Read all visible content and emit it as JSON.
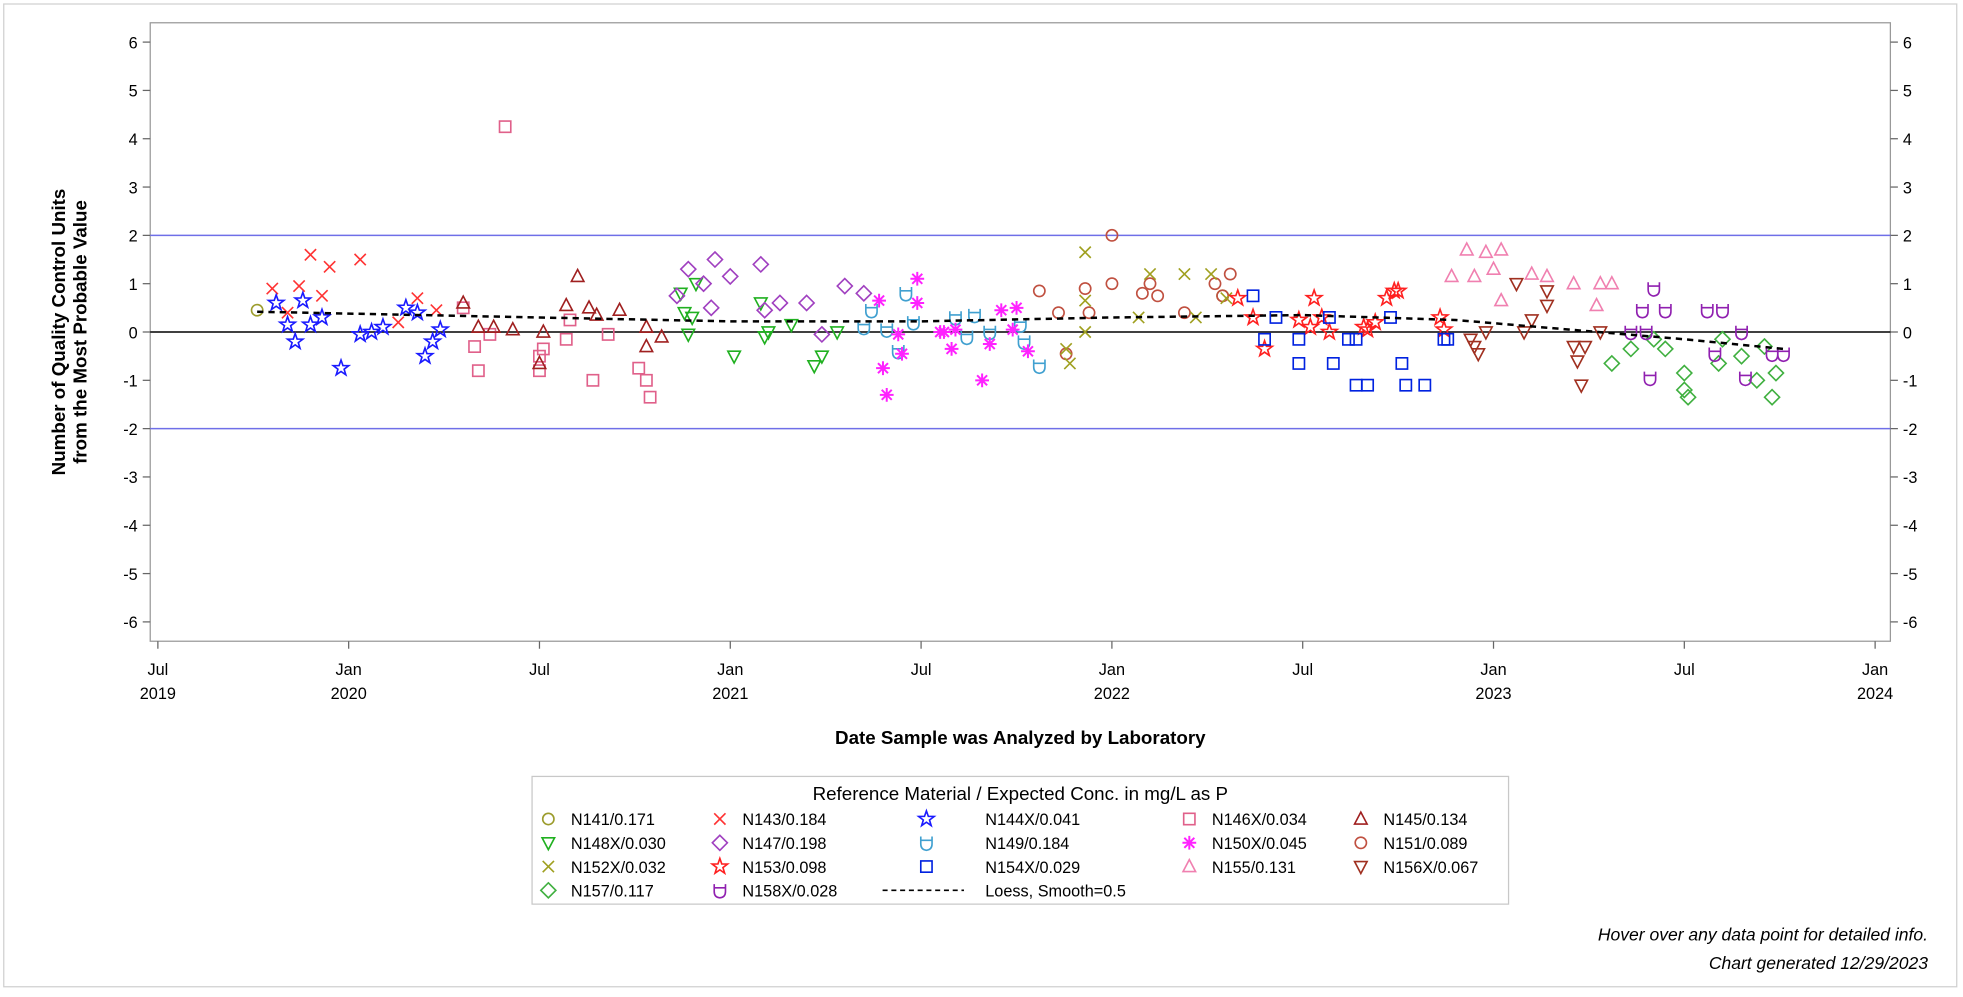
{
  "chart_data": {
    "type": "scatter",
    "ylabel": [
      "Number of Quality Control Units",
      "from the Most Probable Value"
    ],
    "xlabel": "Date Sample was Analyzed by Laboratory",
    "xlim": [
      2019.48,
      2024.04
    ],
    "xticks": [
      {
        "value": 2019.5,
        "label": "Jul 2019"
      },
      {
        "value": 2020.0,
        "label": "Jan 2020"
      },
      {
        "value": 2020.5,
        "label": "Jul"
      },
      {
        "value": 2021.0,
        "label": "Jan 2021"
      },
      {
        "value": 2021.5,
        "label": "Jul"
      },
      {
        "value": 2022.0,
        "label": "Jan 2022"
      },
      {
        "value": 2022.5,
        "label": "Jul"
      },
      {
        "value": 2023.0,
        "label": "Jan 2023"
      },
      {
        "value": 2023.5,
        "label": "Jul"
      },
      {
        "value": 2024.0,
        "label": "Jan 2024"
      }
    ],
    "ylim": [
      -6.4,
      6.4
    ],
    "yticks": [
      -6,
      -5,
      -4,
      -3,
      -2,
      -1,
      0,
      1,
      2,
      3,
      4,
      5,
      6
    ],
    "y2lim": [
      -6.4,
      6.4
    ],
    "y2ticks": [
      -6,
      -5,
      -4,
      -3,
      -2,
      -1,
      0,
      1,
      2,
      3,
      4,
      5,
      6
    ],
    "hlines": [
      {
        "value": 2,
        "color": "#6f6fe8"
      },
      {
        "value": -2,
        "color": "#6f6fe8"
      },
      {
        "value": 0,
        "color": "#000000"
      }
    ],
    "legend_title": "Reference Material / Expected Conc. in mg/L as P",
    "notes": [
      "Hover over any data point for detailed info.",
      "Chart generated 12/29/2023"
    ],
    "series": [
      {
        "name": "N141/0.171",
        "color": "#9c9c2c",
        "marker": "circle",
        "x": [
          2019.76,
          2022.29
        ],
        "values": [
          0.45,
          0.75
        ]
      },
      {
        "name": "N143/0.184",
        "color": "#ff3333",
        "marker": "x",
        "x": [
          2019.8,
          2019.84,
          2019.87,
          2019.9,
          2019.93,
          2019.95,
          2020.03,
          2020.13,
          2020.18,
          2020.23
        ],
        "values": [
          0.9,
          0.4,
          0.95,
          1.6,
          0.75,
          1.35,
          1.5,
          0.2,
          0.7,
          0.45
        ]
      },
      {
        "name": "N144X/0.041",
        "color": "#1a1aff",
        "marker": "star",
        "x": [
          2019.81,
          2019.84,
          2019.86,
          2019.88,
          2019.9,
          2019.93,
          2019.98,
          2020.03,
          2020.06,
          2020.09,
          2020.15,
          2020.18,
          2020.2,
          2020.22,
          2020.24
        ],
        "values": [
          0.6,
          0.15,
          -0.2,
          0.65,
          0.15,
          0.3,
          -0.75,
          -0.05,
          0,
          0.1,
          0.5,
          0.4,
          -0.5,
          -0.2,
          0.05
        ]
      },
      {
        "name": "N146X/0.034",
        "color": "#e0608a",
        "marker": "square",
        "x": [
          2020.3,
          2020.33,
          2020.34,
          2020.37,
          2020.41,
          2020.5,
          2020.5,
          2020.51,
          2020.57,
          2020.58,
          2020.64,
          2020.68,
          2020.76,
          2020.78,
          2020.79
        ],
        "values": [
          0.5,
          -0.3,
          -0.8,
          -0.05,
          4.25,
          -0.5,
          -0.8,
          -0.35,
          -0.15,
          0.25,
          -1,
          -0.05,
          -0.75,
          -1,
          -1.35
        ]
      },
      {
        "name": "N145/0.134",
        "color": "#a02020",
        "marker": "triangle",
        "x": [
          2020.3,
          2020.34,
          2020.38,
          2020.43,
          2020.5,
          2020.51,
          2020.57,
          2020.6,
          2020.63,
          2020.65,
          2020.71,
          2020.78,
          2020.82,
          2020.78
        ],
        "values": [
          0.6,
          0.1,
          0.1,
          0.05,
          -0.65,
          0,
          0.55,
          1.15,
          0.5,
          0.35,
          0.45,
          0.1,
          -0.1,
          -0.3
        ]
      },
      {
        "name": "N148X/0.030",
        "color": "#20b020",
        "marker": "triangle-down",
        "x": [
          2020.87,
          2020.88,
          2020.89,
          2020.9,
          2020.91,
          2021.01,
          2021.08,
          2021.09,
          2021.1,
          2021.16,
          2021.22,
          2021.24,
          2021.28
        ],
        "values": [
          0.8,
          0.4,
          -0.05,
          0.3,
          1,
          -0.5,
          0.6,
          -0.1,
          0,
          0.15,
          -0.7,
          -0.5,
          0
        ]
      },
      {
        "name": "N147/0.198",
        "color": "#a040c0",
        "marker": "diamond",
        "x": [
          2020.86,
          2020.89,
          2020.93,
          2020.95,
          2020.96,
          2021.0,
          2021.08,
          2021.09,
          2021.13,
          2021.2,
          2021.24,
          2021.3,
          2021.35
        ],
        "values": [
          0.75,
          1.3,
          1,
          0.5,
          1.5,
          1.15,
          1.4,
          0.45,
          0.6,
          0.6,
          -0.05,
          0.95,
          0.8
        ]
      },
      {
        "name": "N149/0.184",
        "color": "#40a0d0",
        "marker": "shield",
        "x": [
          2021.35,
          2021.37,
          2021.41,
          2021.44,
          2021.46,
          2021.48,
          2021.59,
          2021.62,
          2021.64,
          2021.68,
          2021.77,
          2021.81,
          2021.76
        ],
        "values": [
          0.1,
          0.45,
          0.05,
          -0.4,
          0.8,
          0.2,
          0.3,
          -0.1,
          0.35,
          0,
          -0.2,
          -0.7,
          0.15
        ]
      },
      {
        "name": "N150X/0.045",
        "color": "#ff22ff",
        "marker": "asterisk",
        "x": [
          2021.39,
          2021.4,
          2021.41,
          2021.44,
          2021.45,
          2021.49,
          2021.49,
          2021.55,
          2021.56,
          2021.58,
          2021.59,
          2021.66,
          2021.68,
          2021.71,
          2021.74,
          2021.75,
          2021.78
        ],
        "values": [
          0.65,
          -0.75,
          -1.3,
          -0.05,
          -0.45,
          0.6,
          1.1,
          0,
          0,
          -0.35,
          0.05,
          -1,
          -0.25,
          0.45,
          0.05,
          0.5,
          -0.4
        ]
      },
      {
        "name": "N151/0.089",
        "color": "#c05040",
        "marker": "circle",
        "x": [
          2021.81,
          2021.86,
          2021.88,
          2021.93,
          2021.94,
          2022.0,
          2022.0,
          2022.08,
          2022.1,
          2022.12,
          2022.19,
          2022.27,
          2022.29,
          2022.31
        ],
        "values": [
          0.85,
          0.4,
          -0.45,
          0.9,
          0.4,
          2,
          1,
          0.8,
          1,
          0.75,
          0.4,
          1,
          0.75,
          1.2
        ]
      },
      {
        "name": "N152X/0.032",
        "color": "#a0a020",
        "marker": "x",
        "x": [
          2021.88,
          2021.89,
          2021.93,
          2021.93,
          2021.93,
          2022.07,
          2022.1,
          2022.19,
          2022.22,
          2022.26,
          2022.3
        ],
        "values": [
          -0.35,
          -0.65,
          1.65,
          0.65,
          0,
          0.3,
          1.2,
          1.2,
          0.3,
          1.2,
          0.7
        ]
      },
      {
        "name": "N153/0.098",
        "color": "#ff2020",
        "marker": "star",
        "x": [
          2022.33,
          2022.37,
          2022.4,
          2022.49,
          2022.52,
          2022.53,
          2022.55,
          2022.57,
          2022.66,
          2022.67,
          2022.69,
          2022.72,
          2022.74,
          2022.75,
          2022.86,
          2022.87
        ],
        "values": [
          0.7,
          0.3,
          -0.35,
          0.25,
          0.1,
          0.7,
          0.3,
          0,
          0.1,
          0.05,
          0.2,
          0.7,
          0.85,
          0.85,
          0.3,
          0.05
        ]
      },
      {
        "name": "N154X/0.029",
        "color": "#0022e0",
        "marker": "square",
        "x": [
          2022.37,
          2022.4,
          2022.43,
          2022.49,
          2022.49,
          2022.57,
          2022.58,
          2022.62,
          2022.64,
          2022.64,
          2022.67,
          2022.73,
          2022.76,
          2022.77,
          2022.82,
          2022.87,
          2022.88
        ],
        "values": [
          0.75,
          -0.15,
          0.3,
          -0.15,
          -0.65,
          0.3,
          -0.65,
          -0.15,
          -0.15,
          -1.1,
          -1.1,
          0.3,
          -0.65,
          -1.1,
          -1.1,
          -0.15,
          -0.15
        ]
      },
      {
        "name": "N155/0.131",
        "color": "#f080b0",
        "marker": "triangle",
        "x": [
          2022.89,
          2022.93,
          2022.95,
          2022.98,
          2023.0,
          2023.02,
          2023.02,
          2023.1,
          2023.14,
          2023.21,
          2023.27,
          2023.28,
          2023.31
        ],
        "values": [
          1.15,
          1.7,
          1.15,
          1.65,
          1.3,
          0.65,
          1.7,
          1.2,
          1.15,
          1,
          0.55,
          1,
          1
        ]
      },
      {
        "name": "N156X/0.067",
        "color": "#a03020",
        "marker": "triangle-down",
        "x": [
          2022.94,
          2022.95,
          2022.96,
          2022.98,
          2023.06,
          2023.08,
          2023.1,
          2023.14,
          2023.14,
          2023.21,
          2023.22,
          2023.23,
          2023.24,
          2023.28
        ],
        "values": [
          -0.15,
          -0.3,
          -0.45,
          0,
          1,
          0,
          0.25,
          0.85,
          0.55,
          -0.3,
          -0.6,
          -1.1,
          -0.3,
          0
        ]
      },
      {
        "name": "N157/0.117",
        "color": "#40b040",
        "marker": "diamond",
        "x": [
          2023.31,
          2023.36,
          2023.42,
          2023.45,
          2023.5,
          2023.5,
          2023.51,
          2023.59,
          2023.6,
          2023.65,
          2023.69,
          2023.71,
          2023.73,
          2023.74
        ],
        "values": [
          -0.65,
          -0.35,
          -0.15,
          -0.35,
          -0.85,
          -1.2,
          -1.35,
          -0.65,
          -0.15,
          -0.5,
          -1,
          -0.3,
          -1.35,
          -0.85
        ]
      },
      {
        "name": "N158X/0.028",
        "color": "#9020b0",
        "marker": "shield",
        "x": [
          2023.36,
          2023.39,
          2023.4,
          2023.41,
          2023.42,
          2023.45,
          2023.56,
          2023.58,
          2023.6,
          2023.65,
          2023.66,
          2023.73,
          2023.76
        ],
        "values": [
          0,
          0.45,
          0,
          -0.95,
          0.9,
          0.45,
          0.45,
          -0.45,
          0.45,
          0,
          -0.95,
          -0.45,
          -0.45
        ]
      },
      {
        "name": "Loess, Smooth=0.5",
        "color": "#000000",
        "marker": "dashed-line",
        "x": [
          2019.76,
          2020.0,
          2020.5,
          2021.0,
          2021.5,
          2022.0,
          2022.5,
          2022.9,
          2023.2,
          2023.5,
          2023.76
        ],
        "values": [
          0.42,
          0.38,
          0.3,
          0.22,
          0.22,
          0.3,
          0.35,
          0.25,
          0.05,
          -0.15,
          -0.35
        ]
      }
    ]
  }
}
